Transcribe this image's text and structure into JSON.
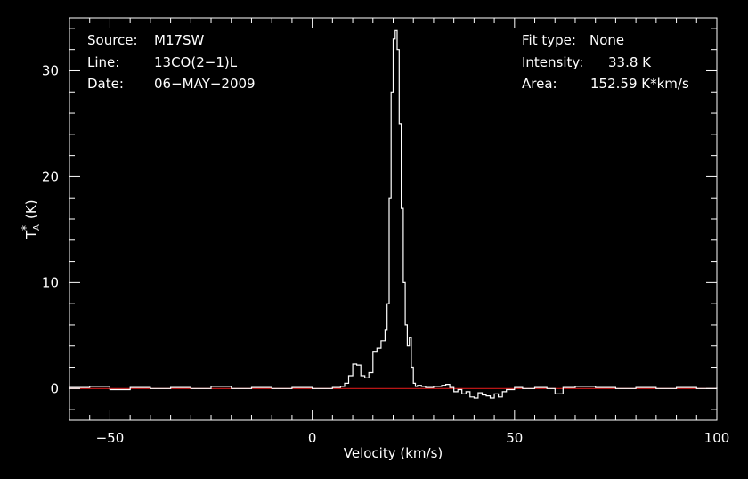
{
  "chart_data": {
    "type": "line",
    "xlabel": "Velocity (km/s)",
    "ylabel": "T",
    "ylabel_sub": "A",
    "ylabel_sup": "*",
    "ylabel_unit": "(K)",
    "xlim": [
      -60,
      100
    ],
    "ylim": [
      -3,
      35
    ],
    "x_ticks": [
      -50,
      0,
      50,
      100
    ],
    "x_tick_labels": [
      "−50",
      "0",
      "50",
      "100"
    ],
    "y_ticks": [
      0,
      10,
      20,
      30
    ],
    "y_tick_labels": [
      "0",
      "10",
      "20",
      "30"
    ],
    "grid": false,
    "colors": {
      "background": "#000000",
      "spectrum": "#ffffff",
      "baseline": "#d11a1a"
    },
    "info_left": [
      {
        "label": "Source:",
        "value": "M17SW"
      },
      {
        "label": "Line:",
        "value": "13CO(2−1)L"
      },
      {
        "label": "Date:",
        "value": "06−MAY−2009"
      }
    ],
    "info_right": [
      {
        "label": "Fit type:",
        "value": "None"
      },
      {
        "label": "Intensity:",
        "value": "33.8 K"
      },
      {
        "label": "Area:",
        "value": "152.59 K*km/s"
      }
    ],
    "baseline": {
      "y": 0
    },
    "series": [
      {
        "x": [
          -60,
          -55,
          -50,
          -45,
          -40,
          -35,
          -30,
          -25,
          -20,
          -15,
          -10,
          -5,
          0,
          5,
          7,
          8,
          9,
          10,
          11,
          12,
          13,
          14,
          15,
          16,
          17,
          18,
          18.5,
          19,
          19.5,
          20,
          20.5,
          21,
          21.5,
          22,
          22.5,
          23,
          23.5,
          24,
          24.5,
          25,
          25.5,
          26,
          27,
          28,
          30,
          32,
          33,
          34,
          35,
          36,
          37,
          38,
          39,
          40,
          41,
          42,
          43,
          44,
          45,
          46,
          47,
          48,
          50,
          52,
          55,
          58,
          60,
          62,
          65,
          70,
          75,
          80,
          85,
          90,
          95,
          100
        ],
        "y": [
          0.1,
          0.2,
          -0.1,
          0.1,
          0.0,
          0.1,
          0.0,
          0.2,
          0.0,
          0.1,
          0.0,
          0.1,
          0.0,
          0.1,
          0.2,
          0.5,
          1.2,
          2.3,
          2.2,
          1.2,
          1.0,
          1.5,
          3.5,
          3.8,
          4.5,
          5.5,
          8.0,
          18.0,
          28.0,
          33.0,
          33.8,
          32.0,
          25.0,
          17.0,
          10.0,
          6.0,
          4.0,
          4.8,
          2.0,
          0.5,
          0.2,
          0.3,
          0.2,
          0.1,
          0.2,
          0.3,
          0.4,
          0.1,
          -0.3,
          -0.1,
          -0.5,
          -0.3,
          -0.8,
          -0.9,
          -0.4,
          -0.6,
          -0.7,
          -0.9,
          -0.5,
          -0.8,
          -0.3,
          -0.1,
          0.1,
          0.0,
          0.1,
          0.0,
          -0.5,
          0.1,
          0.2,
          0.1,
          0.0,
          0.1,
          0.0,
          0.1,
          0.0,
          0.1
        ]
      }
    ]
  }
}
